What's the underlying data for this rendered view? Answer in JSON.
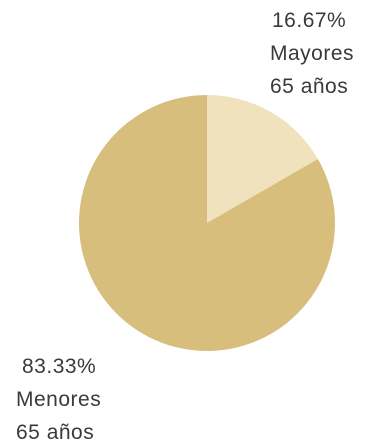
{
  "chart_data": {
    "type": "pie",
    "slices": [
      {
        "name": "Mayores 65 años",
        "percent_label": "16.67%",
        "label_lines": [
          "Mayores",
          "65 años"
        ],
        "value": 16.67,
        "color": "#efe2bd"
      },
      {
        "name": "Menores 65 años",
        "percent_label": "83.33%",
        "label_lines": [
          "Menores",
          "65 años"
        ],
        "value": 83.33,
        "color": "#d8be7c"
      }
    ]
  }
}
